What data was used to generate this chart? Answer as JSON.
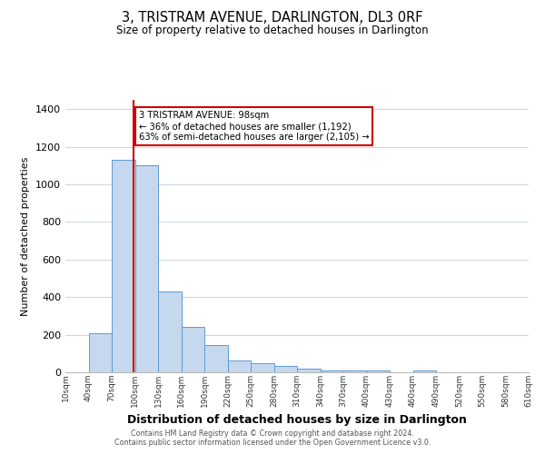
{
  "title": "3, TRISTRAM AVENUE, DARLINGTON, DL3 0RF",
  "subtitle": "Size of property relative to detached houses in Darlington",
  "xlabel": "Distribution of detached houses by size in Darlington",
  "ylabel": "Number of detached properties",
  "bar_color": "#c5d8ed",
  "bar_edge_color": "#5b9bd5",
  "background_color": "#ffffff",
  "grid_color": "#d0d8e4",
  "annotation_box_edge": "#cc0000",
  "annotation_line_color": "#cc0000",
  "annotation_text_line1": "3 TRISTRAM AVENUE: 98sqm",
  "annotation_text_line2": "← 36% of detached houses are smaller (1,192)",
  "annotation_text_line3": "63% of semi-detached houses are larger (2,105) →",
  "property_value_sqm": 98,
  "bins": [
    10,
    40,
    70,
    100,
    130,
    160,
    190,
    220,
    250,
    280,
    310,
    340,
    370,
    400,
    430,
    460,
    490,
    520,
    550,
    580,
    610
  ],
  "counts": [
    0,
    210,
    1130,
    1100,
    430,
    240,
    145,
    63,
    50,
    35,
    18,
    10,
    8,
    10,
    0,
    8,
    0,
    0,
    0,
    0
  ],
  "ylim": [
    0,
    1450
  ],
  "yticks": [
    0,
    200,
    400,
    600,
    800,
    1000,
    1200,
    1400
  ],
  "footnote_line1": "Contains HM Land Registry data © Crown copyright and database right 2024.",
  "footnote_line2": "Contains public sector information licensed under the Open Government Licence v3.0."
}
